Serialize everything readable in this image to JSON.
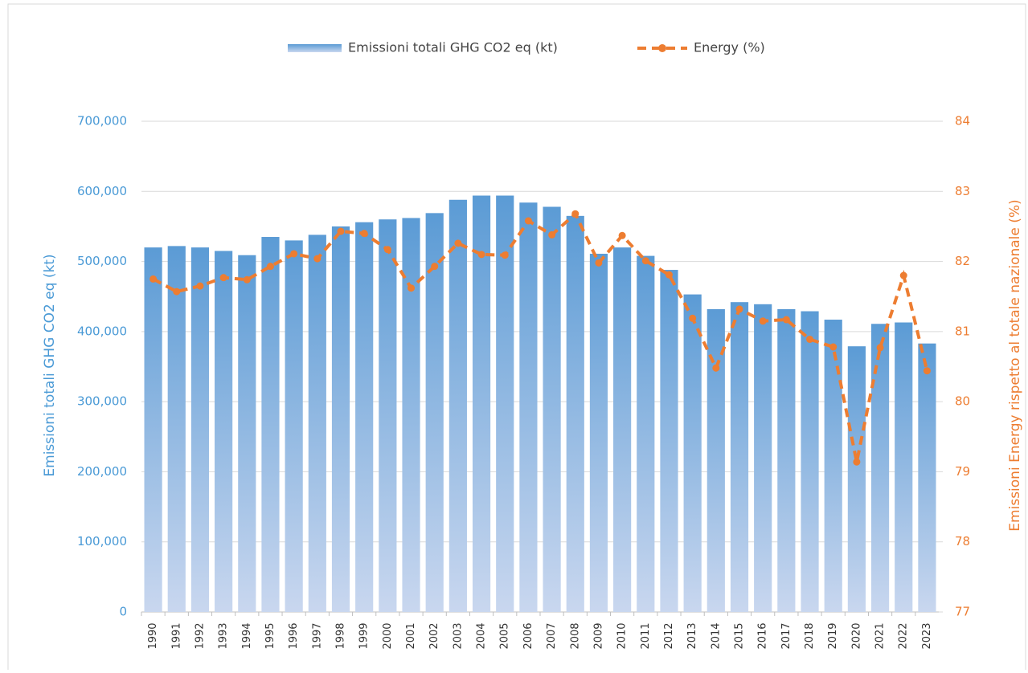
{
  "chart_data": {
    "type": "bar",
    "categories": [
      "1990",
      "1991",
      "1992",
      "1993",
      "1994",
      "1995",
      "1996",
      "1997",
      "1998",
      "1999",
      "2000",
      "2001",
      "2002",
      "2003",
      "2004",
      "2005",
      "2006",
      "2007",
      "2008",
      "2009",
      "2010",
      "2011",
      "2012",
      "2013",
      "2014",
      "2015",
      "2016",
      "2017",
      "2018",
      "2019",
      "2020",
      "2021",
      "2022",
      "2023"
    ],
    "series": [
      {
        "name": "Emissioni totali GHG CO2 eq (kt)",
        "color": "#5b9bd5",
        "type": "bar",
        "values": [
          520000,
          522000,
          520000,
          515000,
          509000,
          535000,
          530000,
          538000,
          550000,
          556000,
          560000,
          562000,
          569000,
          588000,
          594000,
          594000,
          584000,
          578000,
          565000,
          511000,
          520000,
          508000,
          488000,
          453000,
          432000,
          442000,
          439000,
          432000,
          429000,
          417000,
          379000,
          411000,
          413000,
          383000
        ]
      },
      {
        "name": "Energy (%)",
        "color": "#ed7d31",
        "type": "line",
        "axis": "y2",
        "values": [
          81.75,
          81.57,
          81.65,
          81.77,
          81.74,
          81.93,
          82.11,
          82.04,
          82.43,
          82.4,
          82.17,
          81.62,
          81.93,
          82.26,
          82.1,
          82.09,
          82.58,
          82.38,
          82.68,
          81.98,
          82.37,
          82.01,
          81.81,
          81.19,
          80.48,
          81.32,
          81.15,
          81.17,
          80.89,
          80.78,
          79.14,
          80.77,
          81.8,
          80.44
        ]
      }
    ],
    "y_label": "Emissioni totali GHG  CO2 eq (kt)",
    "y2_label": "Emissioni Energy rispetto al totale nazionale (%)",
    "ylim": [
      0,
      700000
    ],
    "yticks": [
      0,
      {
        "value": 100000,
        "label": "100,000"
      },
      {
        "value": 200000,
        "label": "200,000"
      },
      {
        "value": 300000,
        "label": "300,000"
      },
      {
        "value": 400000,
        "label": "400,000"
      },
      {
        "value": 500000,
        "label": "500,000"
      },
      {
        "value": 600000,
        "label": "600,000"
      },
      {
        "value": 700000,
        "label": "700,000"
      }
    ],
    "y2lim": [
      77,
      84
    ],
    "y2ticks": [
      77,
      78,
      79,
      80,
      81,
      82,
      83,
      84
    ],
    "grid": true,
    "legend": "top"
  }
}
